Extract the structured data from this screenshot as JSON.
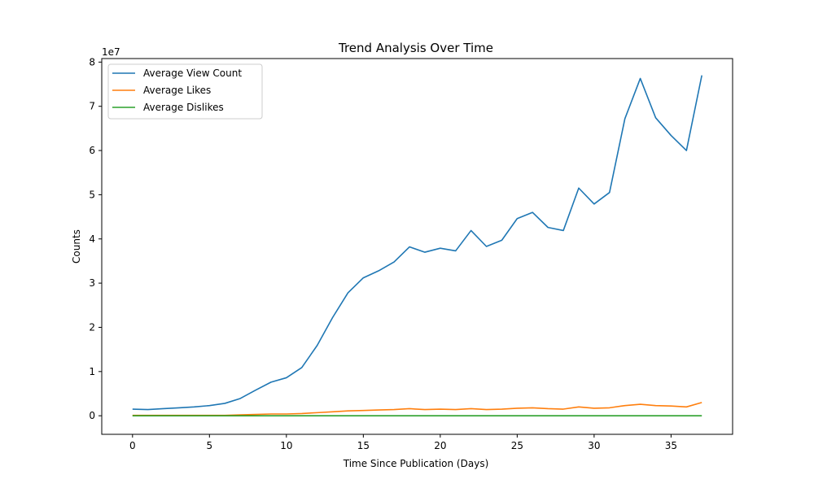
{
  "chart_data": {
    "type": "line",
    "title": "Trend Analysis Over Time",
    "xlabel": "Time Since Publication (Days)",
    "ylabel": "Counts",
    "y_multiplier_label": "1e7",
    "xlim": [
      -2,
      39
    ],
    "ylim": [
      -4200000,
      80800000
    ],
    "x_ticks": [
      0,
      5,
      10,
      15,
      20,
      25,
      30,
      35
    ],
    "y_ticks": [
      0,
      10000000,
      20000000,
      30000000,
      40000000,
      50000000,
      60000000,
      70000000,
      80000000
    ],
    "y_tick_labels": [
      "0",
      "1",
      "2",
      "3",
      "4",
      "5",
      "6",
      "7",
      "8"
    ],
    "grid": false,
    "legend_position": "upper-left",
    "x": [
      0,
      1,
      2,
      3,
      4,
      5,
      6,
      7,
      8,
      9,
      10,
      11,
      12,
      13,
      14,
      15,
      16,
      17,
      18,
      19,
      20,
      21,
      22,
      23,
      24,
      25,
      26,
      27,
      28,
      29,
      30,
      31,
      32,
      33,
      34,
      35,
      36,
      37
    ],
    "series": [
      {
        "name": "Average View Count",
        "color": "#1f77b4",
        "values": [
          1500000,
          1400000,
          1600000,
          1800000,
          2000000,
          2300000,
          2800000,
          3900000,
          5800000,
          7600000,
          8600000,
          10900000,
          15900000,
          22200000,
          27800000,
          31200000,
          32800000,
          34800000,
          38200000,
          37000000,
          37900000,
          37300000,
          41900000,
          38300000,
          39700000,
          44600000,
          46000000,
          42600000,
          41900000,
          51500000,
          47900000,
          50500000,
          67200000,
          76300000,
          67400000,
          63400000,
          60000000,
          77000000
        ]
      },
      {
        "name": "Average Likes",
        "color": "#ff7f0e",
        "values": [
          100000,
          100000,
          100000,
          100000,
          100000,
          100000,
          100000,
          200000,
          300000,
          400000,
          400000,
          500000,
          700000,
          900000,
          1100000,
          1200000,
          1300000,
          1400000,
          1600000,
          1400000,
          1500000,
          1400000,
          1600000,
          1400000,
          1500000,
          1700000,
          1800000,
          1600000,
          1500000,
          2000000,
          1700000,
          1800000,
          2300000,
          2600000,
          2300000,
          2200000,
          2000000,
          3000000
        ]
      },
      {
        "name": "Average Dislikes",
        "color": "#2ca02c",
        "values": [
          0,
          0,
          0,
          0,
          0,
          0,
          0,
          0,
          0,
          0,
          0,
          0,
          0,
          0,
          0,
          0,
          0,
          0,
          0,
          0,
          0,
          0,
          0,
          0,
          0,
          0,
          0,
          0,
          0,
          0,
          0,
          0,
          0,
          0,
          0,
          0,
          0,
          0
        ]
      }
    ]
  }
}
